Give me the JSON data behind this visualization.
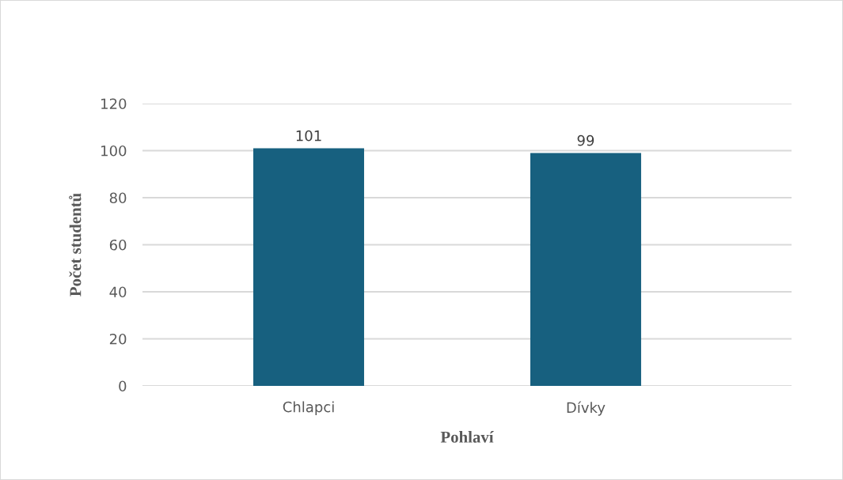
{
  "chart_data": {
    "type": "bar",
    "categories": [
      "Chlapci",
      "Dívky"
    ],
    "values": [
      101,
      99
    ],
    "color": "#17607f",
    "xlabel": "Pohlaví",
    "ylabel": "Počet studentů",
    "ylim": [
      0,
      120
    ],
    "yticks": [
      0,
      20,
      40,
      60,
      80,
      100,
      120
    ],
    "grid": "y",
    "data_labels": true
  }
}
